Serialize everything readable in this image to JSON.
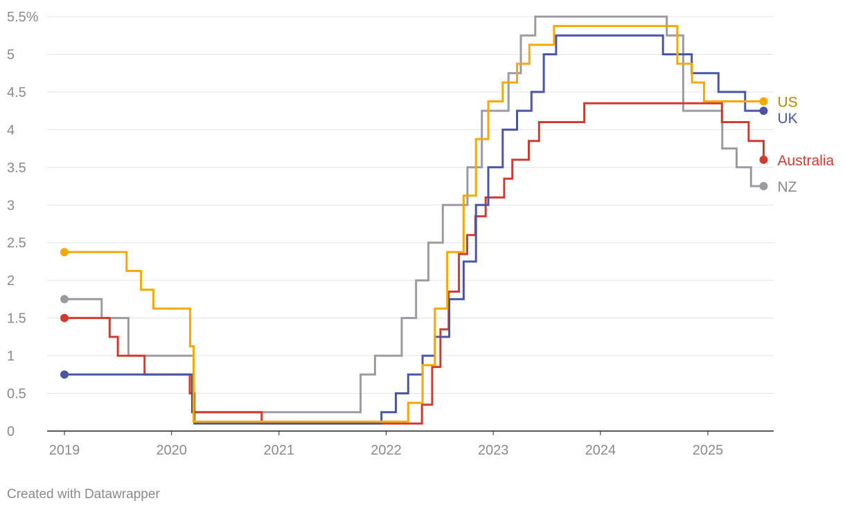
{
  "chart_data": {
    "type": "line",
    "step": true,
    "title": "",
    "xlabel": "",
    "ylabel": "",
    "xlim": [
      "2019-01-01",
      "2025-08-15"
    ],
    "ylim": [
      0,
      5.5
    ],
    "y_ticks": [
      0,
      0.5,
      1,
      1.5,
      2,
      2.5,
      3,
      3.5,
      4,
      4.5,
      5,
      5.5
    ],
    "y_tick_labels": [
      "0",
      "0.5",
      "1",
      "1.5",
      "2",
      "2.5",
      "3",
      "3.5",
      "4",
      "4.5",
      "5",
      "5.5%"
    ],
    "x_ticks": [
      "2019-01-01",
      "2020-01-01",
      "2021-01-01",
      "2022-01-01",
      "2023-01-01",
      "2024-01-01",
      "2025-01-01"
    ],
    "x_tick_labels": [
      "2019",
      "2020",
      "2021",
      "2022",
      "2023",
      "2024",
      "2025"
    ],
    "grid": "horizontal",
    "legend": "direct labels at line ends (right)",
    "series": [
      {
        "name": "NZ",
        "color": "#9b9aa2",
        "label_color": "#8a8a8a",
        "points": [
          [
            "2019-01-01",
            1.75
          ],
          [
            "2019-05-08",
            1.5
          ],
          [
            "2019-08-07",
            1.0
          ],
          [
            "2020-03-16",
            0.25
          ],
          [
            "2021-10-06",
            0.75
          ],
          [
            "2021-11-24",
            1.0
          ],
          [
            "2022-02-23",
            1.5
          ],
          [
            "2022-04-13",
            2.0
          ],
          [
            "2022-05-25",
            2.5
          ],
          [
            "2022-07-13",
            3.0
          ],
          [
            "2022-08-17",
            3.0
          ],
          [
            "2022-10-05",
            3.5
          ],
          [
            "2022-11-23",
            4.25
          ],
          [
            "2023-02-22",
            4.75
          ],
          [
            "2023-04-05",
            5.25
          ],
          [
            "2023-05-24",
            5.5
          ],
          [
            "2024-08-14",
            5.25
          ],
          [
            "2024-10-09",
            4.75
          ],
          [
            "2024-10-09",
            4.25
          ],
          [
            "2025-02-19",
            3.75
          ],
          [
            "2025-04-09",
            3.5
          ],
          [
            "2025-05-28",
            3.25
          ],
          [
            "2025-07-10",
            3.25
          ]
        ]
      },
      {
        "name": "Australia",
        "color": "#d13a30",
        "label_color": "#d13a30",
        "points": [
          [
            "2019-01-01",
            1.5
          ],
          [
            "2019-06-04",
            1.25
          ],
          [
            "2019-07-02",
            1.0
          ],
          [
            "2019-10-01",
            0.75
          ],
          [
            "2020-03-03",
            0.5
          ],
          [
            "2020-03-19",
            0.25
          ],
          [
            "2020-11-03",
            0.1
          ],
          [
            "2022-05-03",
            0.35
          ],
          [
            "2022-06-07",
            0.85
          ],
          [
            "2022-07-05",
            1.35
          ],
          [
            "2022-08-02",
            1.85
          ],
          [
            "2022-09-06",
            2.35
          ],
          [
            "2022-10-04",
            2.6
          ],
          [
            "2022-11-01",
            2.85
          ],
          [
            "2022-12-06",
            3.1
          ],
          [
            "2023-02-07",
            3.35
          ],
          [
            "2023-03-07",
            3.6
          ],
          [
            "2023-05-02",
            3.85
          ],
          [
            "2023-06-06",
            4.1
          ],
          [
            "2023-11-07",
            4.35
          ],
          [
            "2025-02-18",
            4.1
          ],
          [
            "2025-05-20",
            3.85
          ],
          [
            "2025-07-10",
            3.6
          ]
        ]
      },
      {
        "name": "UK",
        "color": "#4b55a6",
        "label_color": "#4b55a6",
        "points": [
          [
            "2019-01-01",
            0.75
          ],
          [
            "2020-03-11",
            0.25
          ],
          [
            "2020-03-19",
            0.1
          ],
          [
            "2021-12-16",
            0.25
          ],
          [
            "2022-02-03",
            0.5
          ],
          [
            "2022-03-17",
            0.75
          ],
          [
            "2022-05-05",
            1.0
          ],
          [
            "2022-06-16",
            1.25
          ],
          [
            "2022-08-04",
            1.75
          ],
          [
            "2022-09-22",
            2.25
          ],
          [
            "2022-11-03",
            3.0
          ],
          [
            "2022-12-15",
            3.5
          ],
          [
            "2023-02-02",
            4.0
          ],
          [
            "2023-03-23",
            4.25
          ],
          [
            "2023-05-11",
            4.5
          ],
          [
            "2023-06-22",
            5.0
          ],
          [
            "2023-08-03",
            5.25
          ],
          [
            "2024-08-01",
            5.0
          ],
          [
            "2024-11-07",
            4.75
          ],
          [
            "2025-02-06",
            4.5
          ],
          [
            "2025-05-08",
            4.25
          ],
          [
            "2025-07-10",
            4.25
          ]
        ]
      },
      {
        "name": "US",
        "color": "#f5a800",
        "label_color": "#b8860b",
        "points": [
          [
            "2019-01-01",
            2.375
          ],
          [
            "2019-08-01",
            2.125
          ],
          [
            "2019-09-19",
            1.875
          ],
          [
            "2019-10-31",
            1.625
          ],
          [
            "2020-03-04",
            1.125
          ],
          [
            "2020-03-16",
            0.125
          ],
          [
            "2022-03-17",
            0.375
          ],
          [
            "2022-05-05",
            0.875
          ],
          [
            "2022-06-16",
            1.625
          ],
          [
            "2022-07-28",
            2.375
          ],
          [
            "2022-09-22",
            3.125
          ],
          [
            "2022-11-03",
            3.875
          ],
          [
            "2022-12-15",
            4.375
          ],
          [
            "2023-02-02",
            4.625
          ],
          [
            "2023-03-23",
            4.875
          ],
          [
            "2023-05-04",
            5.125
          ],
          [
            "2023-07-27",
            5.375
          ],
          [
            "2024-09-19",
            4.875
          ],
          [
            "2024-11-08",
            4.625
          ],
          [
            "2024-12-19",
            4.375
          ],
          [
            "2025-07-10",
            4.375
          ]
        ]
      }
    ]
  },
  "footer": {
    "credit": "Created with Datawrapper"
  }
}
